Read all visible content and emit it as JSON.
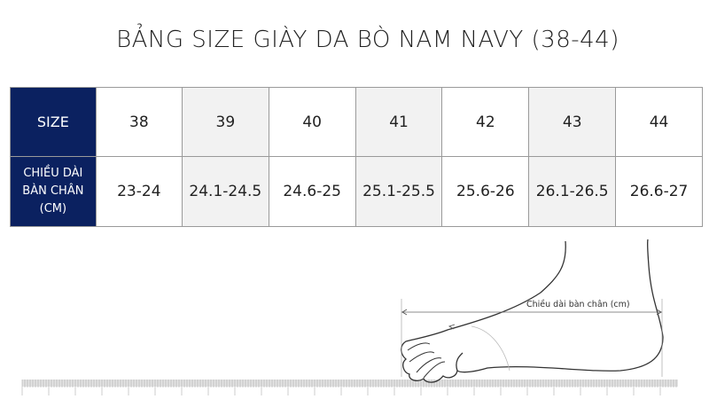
{
  "title": "BẢNG SIZE GIÀY DA BÒ NAM NAVY (38-44)",
  "table": {
    "row_headers": [
      "SIZE",
      "CHIỀU DÀI BÀN CHÂN (CM)"
    ],
    "row_header_lines": [
      "CHIỀU DÀI",
      "BÀN CHÂN",
      "(CM)"
    ],
    "sizes": [
      "38",
      "39",
      "40",
      "41",
      "42",
      "43",
      "44"
    ],
    "lengths": [
      "23-24",
      "24.1-24.5",
      "24.6-25",
      "25.1-25.5",
      "25.6-26",
      "26.1-26.5",
      "26.6-27"
    ]
  },
  "diagram": {
    "label": "Chiều dài bàn chân (cm)"
  },
  "colors": {
    "header_bg": "#0b2160",
    "alt_col_bg": "#f2f2f2"
  }
}
